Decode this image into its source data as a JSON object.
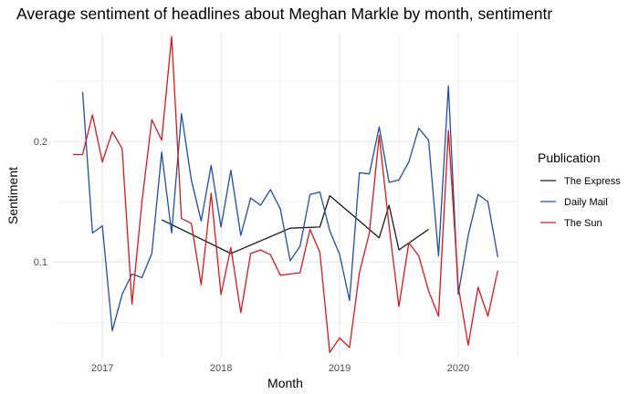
{
  "chart_data": {
    "type": "line",
    "title": "Average sentiment of headlines about Meghan Markle by month, sentimentr",
    "xlabel": "Month",
    "ylabel": "Sentiment",
    "x_ticks": [
      "2017",
      "2018",
      "2019",
      "2020"
    ],
    "y_ticks": [
      "0.1",
      "0.2"
    ],
    "xlim": [
      "2016-08",
      "2020-07"
    ],
    "ylim": [
      0.02,
      0.29
    ],
    "grid": true,
    "legend": {
      "title": "Publication",
      "placement": "right"
    },
    "series": [
      {
        "name": "The Express",
        "color": "#1a1a1a",
        "points": [
          [
            "2017-07",
            0.135
          ],
          [
            "2018-02",
            0.107
          ],
          [
            "2018-08",
            0.128
          ],
          [
            "2018-11",
            0.129
          ],
          [
            "2018-12",
            0.155
          ],
          [
            "2019-05",
            0.12
          ],
          [
            "2019-06",
            0.147
          ],
          [
            "2019-07",
            0.11
          ],
          [
            "2019-10",
            0.127
          ]
        ]
      },
      {
        "name": "Daily Mail",
        "color": "#1f4ea6",
        "points": [
          [
            "2016-11",
            0.241
          ],
          [
            "2016-12",
            0.124
          ],
          [
            "2017-01",
            0.13
          ],
          [
            "2017-02",
            0.043
          ],
          [
            "2017-03",
            0.073
          ],
          [
            "2017-04",
            0.09
          ],
          [
            "2017-05",
            0.087
          ],
          [
            "2017-06",
            0.107
          ],
          [
            "2017-07",
            0.191
          ],
          [
            "2017-08",
            0.124
          ],
          [
            "2017-09",
            0.223
          ],
          [
            "2017-10",
            0.168
          ],
          [
            "2017-11",
            0.134
          ],
          [
            "2017-12",
            0.18
          ],
          [
            "2018-01",
            0.129
          ],
          [
            "2018-02",
            0.176
          ],
          [
            "2018-03",
            0.122
          ],
          [
            "2018-04",
            0.153
          ],
          [
            "2018-05",
            0.147
          ],
          [
            "2018-06",
            0.16
          ],
          [
            "2018-07",
            0.144
          ],
          [
            "2018-08",
            0.101
          ],
          [
            "2018-09",
            0.113
          ],
          [
            "2018-10",
            0.156
          ],
          [
            "2018-11",
            0.158
          ],
          [
            "2018-12",
            0.126
          ],
          [
            "2019-01",
            0.106
          ],
          [
            "2019-02",
            0.068
          ],
          [
            "2019-03",
            0.174
          ],
          [
            "2019-04",
            0.173
          ],
          [
            "2019-05",
            0.212
          ],
          [
            "2019-06",
            0.166
          ],
          [
            "2019-07",
            0.168
          ],
          [
            "2019-08",
            0.183
          ],
          [
            "2019-09",
            0.211
          ],
          [
            "2019-10",
            0.201
          ],
          [
            "2019-11",
            0.105
          ],
          [
            "2019-12",
            0.246
          ],
          [
            "2020-01",
            0.073
          ],
          [
            "2020-02",
            0.122
          ],
          [
            "2020-03",
            0.156
          ],
          [
            "2020-04",
            0.15
          ],
          [
            "2020-05",
            0.104
          ]
        ]
      },
      {
        "name": "The Sun",
        "color": "#d7191c",
        "points": [
          [
            "2016-10",
            0.189
          ],
          [
            "2016-11",
            0.189
          ],
          [
            "2016-12",
            0.222
          ],
          [
            "2017-01",
            0.183
          ],
          [
            "2017-02",
            0.208
          ],
          [
            "2017-03",
            0.194
          ],
          [
            "2017-04",
            0.065
          ],
          [
            "2017-05",
            0.15
          ],
          [
            "2017-06",
            0.218
          ],
          [
            "2017-07",
            0.201
          ],
          [
            "2017-08",
            0.287
          ],
          [
            "2017-09",
            0.136
          ],
          [
            "2017-10",
            0.132
          ],
          [
            "2017-11",
            0.081
          ],
          [
            "2017-12",
            0.157
          ],
          [
            "2018-01",
            0.073
          ],
          [
            "2018-02",
            0.112
          ],
          [
            "2018-03",
            0.058
          ],
          [
            "2018-04",
            0.107
          ],
          [
            "2018-05",
            0.11
          ],
          [
            "2018-06",
            0.106
          ],
          [
            "2018-07",
            0.089
          ],
          [
            "2018-08",
            0.09
          ],
          [
            "2018-09",
            0.091
          ],
          [
            "2018-10",
            0.127
          ],
          [
            "2018-11",
            0.108
          ],
          [
            "2018-12",
            0.025
          ],
          [
            "2019-01",
            0.037
          ],
          [
            "2019-02",
            0.029
          ],
          [
            "2019-03",
            0.091
          ],
          [
            "2019-04",
            0.124
          ],
          [
            "2019-05",
            0.205
          ],
          [
            "2019-06",
            0.13
          ],
          [
            "2019-07",
            0.063
          ],
          [
            "2019-08",
            0.116
          ],
          [
            "2019-09",
            0.105
          ],
          [
            "2019-10",
            0.076
          ],
          [
            "2019-11",
            0.055
          ],
          [
            "2019-12",
            0.209
          ],
          [
            "2020-01",
            0.08
          ],
          [
            "2020-02",
            0.031
          ],
          [
            "2020-03",
            0.079
          ],
          [
            "2020-04",
            0.055
          ],
          [
            "2020-05",
            0.093
          ]
        ]
      }
    ]
  }
}
